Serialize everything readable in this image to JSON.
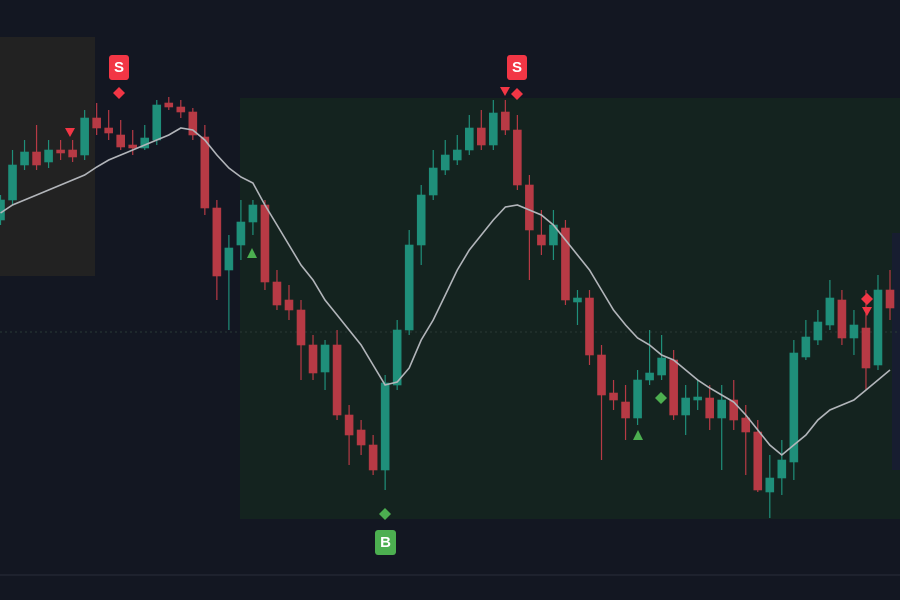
{
  "chart_data": {
    "type": "candlestick",
    "ylim": [
      0,
      600
    ],
    "up_color": "#1f8f7a",
    "down_color": "#b73a45",
    "ma_color": "#b2b5ba",
    "open": [
      380,
      400,
      435,
      448,
      438,
      450,
      450,
      445,
      482,
      472,
      465,
      455,
      452,
      460,
      497,
      493,
      488,
      463,
      392,
      330,
      355,
      378,
      395,
      318,
      300,
      290,
      255,
      228,
      255,
      185,
      170,
      155,
      130,
      215,
      270,
      355,
      405,
      430,
      440,
      450,
      472,
      455,
      488,
      470,
      415,
      365,
      355,
      372,
      298,
      302,
      245,
      207,
      198,
      182,
      220,
      225,
      240,
      185,
      200,
      202,
      182,
      200,
      182,
      168,
      108,
      122,
      138,
      243,
      260,
      275,
      300,
      262,
      272,
      235,
      310
    ],
    "high": [
      405,
      450,
      460,
      475,
      460,
      460,
      460,
      490,
      497,
      490,
      480,
      470,
      475,
      500,
      503,
      500,
      492,
      475,
      400,
      365,
      400,
      400,
      400,
      330,
      315,
      300,
      265,
      260,
      270,
      195,
      180,
      165,
      225,
      280,
      370,
      415,
      450,
      460,
      465,
      485,
      490,
      500,
      500,
      485,
      425,
      390,
      390,
      380,
      310,
      310,
      255,
      220,
      215,
      230,
      270,
      265,
      250,
      215,
      220,
      215,
      215,
      220,
      195,
      180,
      145,
      160,
      260,
      280,
      290,
      320,
      310,
      290,
      310,
      325,
      330
    ],
    "low": [
      375,
      395,
      430,
      430,
      432,
      440,
      438,
      440,
      465,
      460,
      450,
      445,
      450,
      455,
      490,
      482,
      460,
      385,
      300,
      270,
      340,
      365,
      310,
      290,
      280,
      220,
      220,
      210,
      180,
      135,
      145,
      125,
      110,
      210,
      265,
      335,
      400,
      425,
      435,
      445,
      450,
      450,
      465,
      410,
      320,
      345,
      340,
      295,
      275,
      235,
      140,
      190,
      160,
      175,
      215,
      220,
      180,
      165,
      190,
      170,
      130,
      170,
      125,
      108,
      82,
      105,
      120,
      240,
      255,
      270,
      255,
      245,
      210,
      230,
      280
    ],
    "close": [
      400,
      435,
      448,
      435,
      450,
      447,
      443,
      482,
      472,
      467,
      453,
      452,
      462,
      495,
      493,
      488,
      465,
      392,
      324,
      352,
      378,
      395,
      318,
      295,
      290,
      255,
      227,
      255,
      185,
      165,
      155,
      130,
      217,
      270,
      355,
      405,
      432,
      445,
      450,
      472,
      455,
      487,
      470,
      415,
      370,
      355,
      375,
      300,
      302,
      245,
      205,
      200,
      182,
      220,
      227,
      242,
      185,
      202,
      203,
      182,
      200,
      180,
      168,
      110,
      122,
      140,
      247,
      263,
      278,
      302,
      262,
      275,
      232,
      310,
      292
    ],
    "ma": [
      387,
      395,
      400,
      405,
      410,
      415,
      420,
      425,
      433,
      440,
      445,
      450,
      455,
      460,
      465,
      472,
      470,
      460,
      445,
      432,
      423,
      417,
      395,
      375,
      355,
      335,
      320,
      300,
      285,
      270,
      255,
      235,
      215,
      218,
      232,
      260,
      280,
      305,
      330,
      350,
      365,
      380,
      393,
      395,
      390,
      385,
      375,
      360,
      345,
      330,
      310,
      290,
      275,
      262,
      255,
      245,
      240,
      230,
      220,
      212,
      205,
      198,
      185,
      170,
      155,
      145,
      155,
      165,
      180,
      190,
      195,
      200,
      210,
      220,
      230
    ]
  },
  "markers": [
    {
      "label": "S"
    },
    {
      "label": "S"
    },
    {
      "label": "B"
    }
  ]
}
